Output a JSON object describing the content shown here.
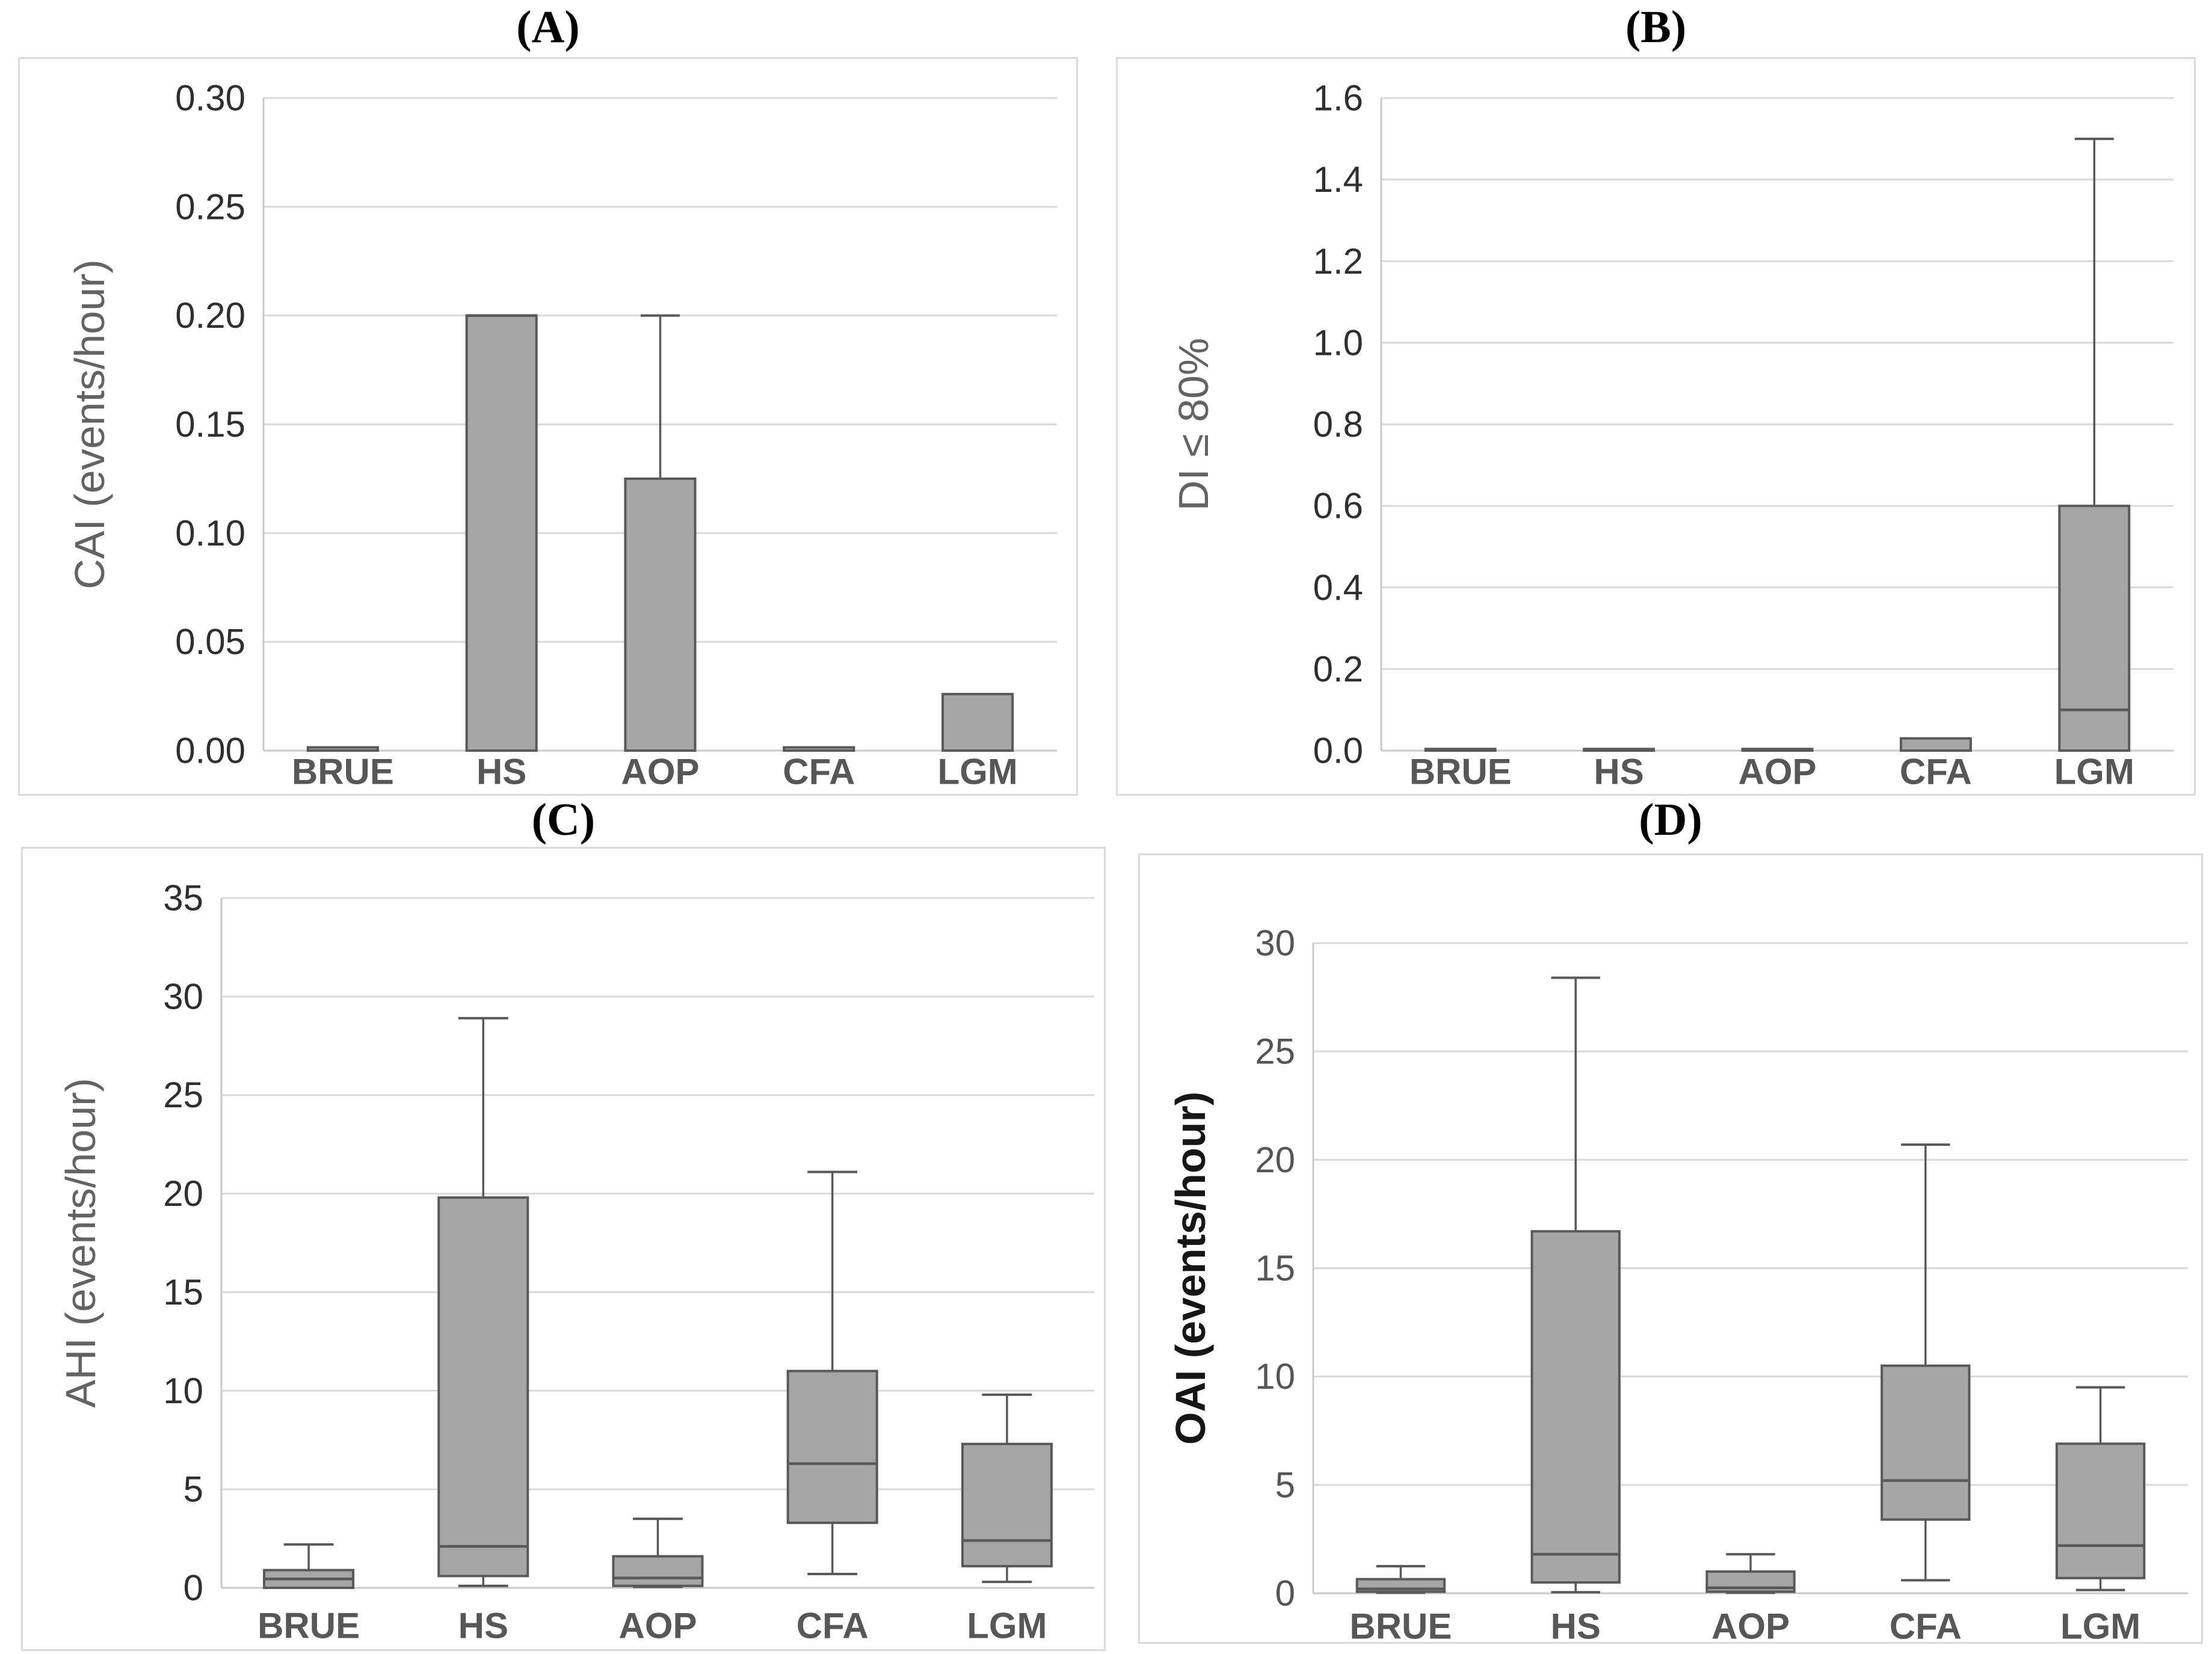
{
  "figure": {
    "background": "#ffffff",
    "description": "Four-panel box-and-whisker figure comparing polysomnography indices across five patient groups"
  },
  "colors": {
    "box_fill": "#a6a6a6",
    "box_stroke": "#595959",
    "whisker": "#595959",
    "median": "#595959",
    "gridline": "#d9d9d9",
    "axis_line": "#c8c8c8",
    "category_label": "#575757",
    "panel_border": "#dadada",
    "title": "#000000"
  },
  "chart_data": [
    {
      "type": "box",
      "panel": "A",
      "title": "(A)",
      "ylabel": "CAI (events/hour)",
      "ylabel_color": "#636363",
      "tick_color": "#2f2f2f",
      "ylim": [
        0,
        0.3
      ],
      "ytick_values": [
        0,
        0.05,
        0.1,
        0.15,
        0.2,
        0.25,
        0.3
      ],
      "ytick_labels": [
        "0.00",
        "0.05",
        "0.10",
        "0.15",
        "0.20",
        "0.25",
        "0.30"
      ],
      "grid": "horizontal",
      "legend": "none",
      "categories": [
        "BRUE",
        "HS",
        "AOP",
        "CFA",
        "LGM"
      ],
      "boxes": [
        {
          "category": "BRUE",
          "box_bottom": 0,
          "box_top": 0.0015,
          "median": null,
          "whisker_low": null,
          "whisker_high": null
        },
        {
          "category": "HS",
          "box_bottom": 0,
          "box_top": 0.2,
          "median": 0.2,
          "whisker_low": null,
          "whisker_high": null
        },
        {
          "category": "AOP",
          "box_bottom": 0,
          "box_top": 0.125,
          "median": null,
          "whisker_low": null,
          "whisker_high": 0.2
        },
        {
          "category": "CFA",
          "box_bottom": 0,
          "box_top": 0.0015,
          "median": null,
          "whisker_low": null,
          "whisker_high": null
        },
        {
          "category": "LGM",
          "box_bottom": 0,
          "box_top": 0.026,
          "median": null,
          "whisker_low": null,
          "whisker_high": null
        }
      ]
    },
    {
      "type": "box",
      "panel": "B",
      "title": "(B)",
      "ylabel": "DI ≤ 80%",
      "ylabel_color": "#636363",
      "tick_color": "#2f2f2f",
      "ylim": [
        0,
        1.6
      ],
      "ytick_values": [
        0,
        0.2,
        0.4,
        0.6,
        0.8,
        1.0,
        1.2,
        1.4,
        1.6
      ],
      "ytick_labels": [
        "0.0",
        "0.2",
        "0.4",
        "0.6",
        "0.8",
        "1.0",
        "1.2",
        "1.4",
        "1.6"
      ],
      "grid": "horizontal",
      "legend": "none",
      "categories": [
        "BRUE",
        "HS",
        "AOP",
        "CFA",
        "LGM"
      ],
      "boxes": [
        {
          "category": "BRUE",
          "box_bottom": 0,
          "box_top": 0.004,
          "median": null,
          "whisker_low": null,
          "whisker_high": null
        },
        {
          "category": "HS",
          "box_bottom": 0,
          "box_top": 0.004,
          "median": null,
          "whisker_low": null,
          "whisker_high": null
        },
        {
          "category": "AOP",
          "box_bottom": 0,
          "box_top": 0.004,
          "median": null,
          "whisker_low": null,
          "whisker_high": null
        },
        {
          "category": "CFA",
          "box_bottom": 0,
          "box_top": 0.03,
          "median": null,
          "whisker_low": null,
          "whisker_high": null
        },
        {
          "category": "LGM",
          "box_bottom": 0,
          "box_top": 0.6,
          "median": 0.1,
          "whisker_low": null,
          "whisker_high": 1.5
        }
      ]
    },
    {
      "type": "box",
      "panel": "C",
      "title": "(C)",
      "ylabel": "AHI (events/hour)",
      "ylabel_color": "#636363",
      "tick_color": "#2f2f2f",
      "ylim": [
        0,
        35
      ],
      "ytick_values": [
        0,
        5,
        10,
        15,
        20,
        25,
        30,
        35
      ],
      "ytick_labels": [
        "0",
        "5",
        "10",
        "15",
        "20",
        "25",
        "30",
        "35"
      ],
      "grid": "horizontal",
      "legend": "none",
      "categories": [
        "BRUE",
        "HS",
        "AOP",
        "CFA",
        "LGM"
      ],
      "boxes": [
        {
          "category": "BRUE",
          "box_bottom": 0,
          "box_top": 0.9,
          "median": 0.45,
          "whisker_low": null,
          "whisker_high": 2.2
        },
        {
          "category": "HS",
          "box_bottom": 0.6,
          "box_top": 19.8,
          "median": 2.1,
          "whisker_low": 0.1,
          "whisker_high": 28.9
        },
        {
          "category": "AOP",
          "box_bottom": 0.1,
          "box_top": 1.6,
          "median": 0.5,
          "whisker_low": 0.05,
          "whisker_high": 3.5
        },
        {
          "category": "CFA",
          "box_bottom": 3.3,
          "box_top": 11.0,
          "median": 6.3,
          "whisker_low": 0.7,
          "whisker_high": 21.1
        },
        {
          "category": "LGM",
          "box_bottom": 1.1,
          "box_top": 7.3,
          "median": 2.4,
          "whisker_low": 0.3,
          "whisker_high": 9.8
        }
      ]
    },
    {
      "type": "box",
      "panel": "D",
      "title": "(D)",
      "ylabel": "OAI (events/hour)",
      "ylabel_color": "#161616",
      "tick_color": "#555555",
      "ylim": [
        0,
        30
      ],
      "ytick_values": [
        0,
        5,
        10,
        15,
        20,
        25,
        30
      ],
      "ytick_labels": [
        "0",
        "5",
        "10",
        "15",
        "20",
        "25",
        "30"
      ],
      "grid": "horizontal",
      "legend": "none",
      "categories": [
        "BRUE",
        "HS",
        "AOP",
        "CFA",
        "LGM"
      ],
      "boxes": [
        {
          "category": "BRUE",
          "box_bottom": 0.07,
          "box_top": 0.65,
          "median": 0.2,
          "whisker_low": 0.02,
          "whisker_high": 1.25
        },
        {
          "category": "HS",
          "box_bottom": 0.5,
          "box_top": 16.7,
          "median": 1.8,
          "whisker_low": 0.05,
          "whisker_high": 28.4
        },
        {
          "category": "AOP",
          "box_bottom": 0.07,
          "box_top": 1.0,
          "median": 0.25,
          "whisker_low": 0.02,
          "whisker_high": 1.8
        },
        {
          "category": "CFA",
          "box_bottom": 3.4,
          "box_top": 10.5,
          "median": 5.2,
          "whisker_low": 0.6,
          "whisker_high": 20.7
        },
        {
          "category": "LGM",
          "box_bottom": 0.7,
          "box_top": 6.9,
          "median": 2.2,
          "whisker_low": 0.15,
          "whisker_high": 9.5
        }
      ]
    }
  ]
}
